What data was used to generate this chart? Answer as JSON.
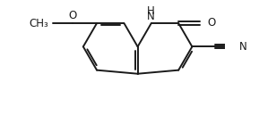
{
  "bg_color": "#ffffff",
  "line_color": "#1a1a1a",
  "line_width": 1.4,
  "font_size": 8.5,
  "fig_width": 2.89,
  "fig_height": 1.29,
  "dpi": 100,
  "xlim": [
    -3.8,
    3.2
  ],
  "ylim": [
    -2.0,
    2.2
  ]
}
